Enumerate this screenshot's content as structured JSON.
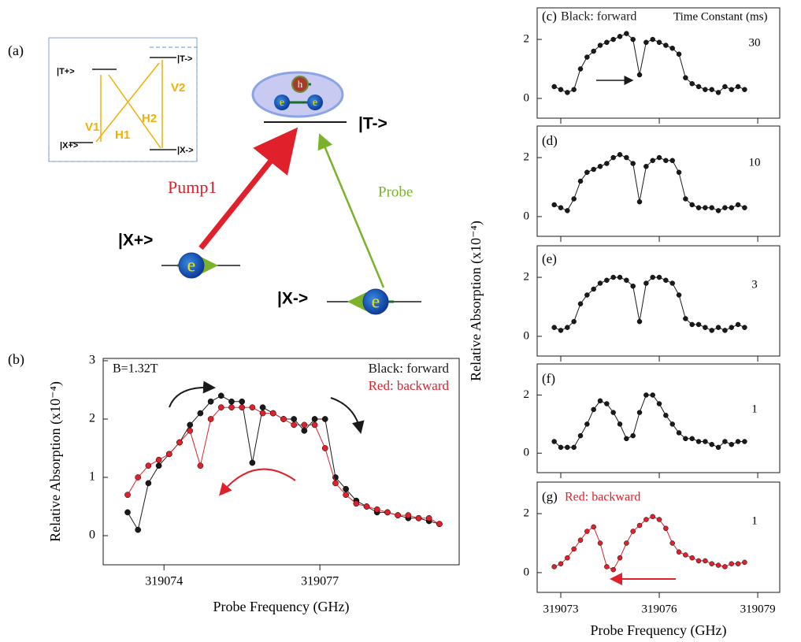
{
  "diagram": {
    "panel_label": "(a)",
    "inset": {
      "levels": [
        "|T+>",
        "|T->",
        "|X+>",
        "|X->"
      ],
      "transitions": [
        "V1",
        "H1",
        "H2",
        "V2"
      ]
    },
    "levels": [
      "|T->",
      "|X+>",
      "|X->"
    ],
    "pump": "Pump1",
    "probe": "Probe",
    "electron": "e",
    "hole": "h"
  },
  "chart_data": [
    {
      "type": "line",
      "panel_label": "(b)",
      "annotations": [
        "B=1.32T"
      ],
      "xlabel": "Probe Frequency (GHz)",
      "ylabel": "Relative Absorption (x10⁻⁴)",
      "xlim": [
        319072.83,
        319079.68
      ],
      "xticks": [
        319074,
        319077
      ],
      "ylim": [
        -0.5,
        3.04
      ],
      "yticks": [
        0,
        1,
        2,
        3
      ],
      "x": [
        319073.3,
        319073.5,
        319073.7,
        319073.9,
        319074.1,
        319074.3,
        319074.5,
        319074.7,
        319074.9,
        319075.1,
        319075.3,
        319075.5,
        319075.7,
        319075.9,
        319076.1,
        319076.3,
        319076.5,
        319076.7,
        319076.9,
        319077.1,
        319077.3,
        319077.5,
        319077.7,
        319077.9,
        319078.1,
        319078.3,
        319078.5,
        319078.7,
        319078.9,
        319079.1,
        319079.3
      ],
      "series": [
        {
          "name": "Black: forward",
          "color": "#1a1a1a",
          "values": [
            0.4,
            0.1,
            0.9,
            1.2,
            1.4,
            1.6,
            1.9,
            2.1,
            2.3,
            2.4,
            2.3,
            2.3,
            1.25,
            2.2,
            2.1,
            2.0,
            2.0,
            1.8,
            2.0,
            2.0,
            1.0,
            0.8,
            0.6,
            0.5,
            0.4,
            0.4,
            0.35,
            0.3,
            0.3,
            0.25,
            0.2
          ]
        },
        {
          "name": "Red: backward",
          "color": "#e0202a",
          "values": [
            0.7,
            1.0,
            1.2,
            1.3,
            1.4,
            1.6,
            1.8,
            1.2,
            2.0,
            2.2,
            2.2,
            2.2,
            2.2,
            2.1,
            2.1,
            2.0,
            1.9,
            1.9,
            1.9,
            1.5,
            0.9,
            0.7,
            0.55,
            0.5,
            0.45,
            0.4,
            0.35,
            0.35,
            0.3,
            0.3,
            0.2
          ]
        }
      ]
    },
    {
      "type": "line",
      "panel_label": "(c)",
      "annotations": [
        "Time Constant (ms)",
        "30"
      ],
      "xlim": [
        319072.28,
        319079.67
      ],
      "xticks": [
        319073,
        319076,
        319079
      ],
      "ylim": [
        -0.67,
        3.07
      ],
      "yticks": [
        0,
        2
      ],
      "x": [
        319072.8,
        319073.0,
        319073.2,
        319073.4,
        319073.6,
        319073.8,
        319074.0,
        319074.2,
        319074.4,
        319074.6,
        319074.8,
        319075.0,
        319075.2,
        319075.4,
        319075.6,
        319075.8,
        319076.0,
        319076.2,
        319076.4,
        319076.6,
        319076.8,
        319077.0,
        319077.2,
        319077.4,
        319077.6,
        319077.8,
        319078.0,
        319078.2,
        319078.4,
        319078.6
      ],
      "series": [
        {
          "name": "Black: forward",
          "color": "#1a1a1a",
          "values": [
            0.4,
            0.3,
            0.2,
            0.3,
            1.0,
            1.4,
            1.6,
            1.8,
            1.9,
            2.0,
            2.1,
            2.2,
            2.0,
            0.8,
            1.9,
            2.0,
            1.9,
            1.8,
            1.7,
            1.5,
            0.7,
            0.5,
            0.4,
            0.3,
            0.3,
            0.2,
            0.4,
            0.3,
            0.4,
            0.3
          ]
        }
      ]
    },
    {
      "type": "line",
      "panel_label": "(d)",
      "annotations": [
        "10"
      ],
      "xlim": [
        319072.28,
        319079.67
      ],
      "xticks": [
        319073,
        319076,
        319079
      ],
      "ylim": [
        -0.67,
        3.07
      ],
      "yticks": [
        0,
        2
      ],
      "x": [
        319072.8,
        319073.0,
        319073.2,
        319073.4,
        319073.6,
        319073.8,
        319074.0,
        319074.2,
        319074.4,
        319074.6,
        319074.8,
        319075.0,
        319075.2,
        319075.4,
        319075.6,
        319075.8,
        319076.0,
        319076.2,
        319076.4,
        319076.6,
        319076.8,
        319077.0,
        319077.2,
        319077.4,
        319077.6,
        319077.8,
        319078.0,
        319078.2,
        319078.4,
        319078.6
      ],
      "series": [
        {
          "color": "#1a1a1a",
          "values": [
            0.4,
            0.3,
            0.2,
            0.6,
            1.2,
            1.5,
            1.6,
            1.7,
            1.8,
            2.0,
            2.1,
            2.0,
            1.8,
            0.5,
            1.7,
            1.9,
            2.0,
            1.9,
            1.9,
            1.5,
            0.6,
            0.4,
            0.3,
            0.3,
            0.3,
            0.2,
            0.3,
            0.3,
            0.4,
            0.3
          ]
        }
      ]
    },
    {
      "type": "line",
      "panel_label": "(e)",
      "annotations": [
        "3"
      ],
      "ylabel": "Relative Absorption (x10⁻⁴)",
      "xlim": [
        319072.28,
        319079.67
      ],
      "xticks": [
        319073,
        319076,
        319079
      ],
      "ylim": [
        -0.67,
        3.07
      ],
      "yticks": [
        0,
        2
      ],
      "x": [
        319072.8,
        319073.0,
        319073.2,
        319073.4,
        319073.6,
        319073.8,
        319074.0,
        319074.2,
        319074.4,
        319074.6,
        319074.8,
        319075.0,
        319075.2,
        319075.4,
        319075.6,
        319075.8,
        319076.0,
        319076.2,
        319076.4,
        319076.6,
        319076.8,
        319077.0,
        319077.2,
        319077.4,
        319077.6,
        319077.8,
        319078.0,
        319078.2,
        319078.4,
        319078.6
      ],
      "series": [
        {
          "color": "#1a1a1a",
          "values": [
            0.3,
            0.2,
            0.3,
            0.5,
            1.1,
            1.4,
            1.6,
            1.8,
            1.9,
            2.0,
            2.0,
            1.9,
            1.7,
            0.5,
            1.8,
            2.0,
            2.0,
            1.9,
            1.8,
            1.4,
            0.6,
            0.4,
            0.4,
            0.3,
            0.2,
            0.3,
            0.2,
            0.3,
            0.4,
            0.3
          ]
        }
      ]
    },
    {
      "type": "line",
      "panel_label": "(f)",
      "annotations": [
        "1"
      ],
      "xlim": [
        319072.28,
        319079.67
      ],
      "xticks": [
        319073,
        319076,
        319079
      ],
      "ylim": [
        -0.67,
        3.07
      ],
      "yticks": [
        0,
        2
      ],
      "x": [
        319072.8,
        319073.0,
        319073.2,
        319073.4,
        319073.6,
        319073.8,
        319074.0,
        319074.2,
        319074.4,
        319074.6,
        319074.8,
        319075.0,
        319075.2,
        319075.4,
        319075.6,
        319075.8,
        319076.0,
        319076.2,
        319076.4,
        319076.6,
        319076.8,
        319077.0,
        319077.2,
        319077.4,
        319077.6,
        319077.8,
        319078.0,
        319078.2,
        319078.4,
        319078.6
      ],
      "series": [
        {
          "color": "#1a1a1a",
          "values": [
            0.4,
            0.2,
            0.2,
            0.2,
            0.6,
            1.0,
            1.5,
            1.8,
            1.7,
            1.4,
            1.0,
            0.5,
            0.6,
            1.4,
            2.0,
            2.0,
            1.7,
            1.3,
            1.0,
            0.7,
            0.5,
            0.5,
            0.4,
            0.4,
            0.3,
            0.2,
            0.4,
            0.3,
            0.4,
            0.4
          ]
        }
      ]
    },
    {
      "type": "line",
      "panel_label": "(g)",
      "annotations": [
        "1"
      ],
      "xlabel": "Probe Frequency (GHz)",
      "xlim": [
        319072.28,
        319079.67
      ],
      "xticks": [
        319073,
        319076,
        319079
      ],
      "ylim": [
        -0.67,
        3.07
      ],
      "yticks": [
        0,
        2
      ],
      "x": [
        319072.8,
        319073.0,
        319073.2,
        319073.4,
        319073.6,
        319073.8,
        319074.0,
        319074.2,
        319074.4,
        319074.6,
        319074.8,
        319075.0,
        319075.2,
        319075.4,
        319075.6,
        319075.8,
        319076.0,
        319076.2,
        319076.4,
        319076.6,
        319076.8,
        319077.0,
        319077.2,
        319077.4,
        319077.6,
        319077.8,
        319078.0,
        319078.2,
        319078.4,
        319078.6
      ],
      "series": [
        {
          "name": "Red: backward",
          "color": "#e0202a",
          "values": [
            0.2,
            0.3,
            0.5,
            0.8,
            1.1,
            1.4,
            1.55,
            1.0,
            0.2,
            0.1,
            0.5,
            1.0,
            1.4,
            1.6,
            1.8,
            1.9,
            1.8,
            1.5,
            1.0,
            0.7,
            0.6,
            0.5,
            0.4,
            0.4,
            0.3,
            0.25,
            0.2,
            0.3,
            0.3,
            0.35
          ]
        }
      ]
    }
  ]
}
